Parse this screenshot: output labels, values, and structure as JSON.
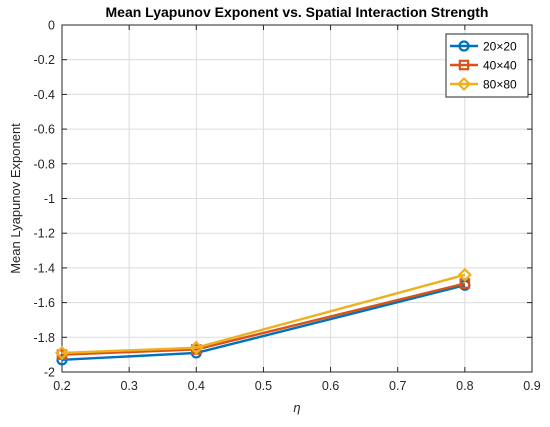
{
  "chart_data": {
    "type": "line",
    "title": "Mean Lyapunov Exponent vs. Spatial Interaction Strength",
    "xlabel": "η",
    "ylabel": "Mean Lyapunov Exponent",
    "xlim": [
      0.2,
      0.9
    ],
    "ylim": [
      -2,
      0
    ],
    "xticks": [
      0.2,
      0.3,
      0.4,
      0.5,
      0.6,
      0.7,
      0.8,
      0.9
    ],
    "xtick_labels": [
      "0.2",
      "0.3",
      "0.4",
      "0.5",
      "0.6",
      "0.7",
      "0.8",
      "0.9"
    ],
    "yticks": [
      0,
      -0.2,
      -0.4,
      -0.6,
      -0.8,
      -1,
      -1.2,
      -1.4,
      -1.6,
      -1.8,
      -2
    ],
    "ytick_labels": [
      "0",
      "-0.2",
      "-0.4",
      "-0.6",
      "-0.8",
      "-1",
      "-1.2",
      "-1.4",
      "-1.6",
      "-1.8",
      "-2"
    ],
    "grid": true,
    "legend_position": "top-right",
    "x": [
      0.2,
      0.4,
      0.8
    ],
    "series": [
      {
        "name": "20×20",
        "values": [
          -1.93,
          -1.89,
          -1.5
        ],
        "color": "#0072BD",
        "marker": "circle"
      },
      {
        "name": "40×40",
        "values": [
          -1.9,
          -1.87,
          -1.49
        ],
        "color": "#D95319",
        "marker": "square"
      },
      {
        "name": "80×80",
        "values": [
          -1.89,
          -1.86,
          -1.44
        ],
        "color": "#EDB120",
        "marker": "diamond"
      }
    ]
  }
}
